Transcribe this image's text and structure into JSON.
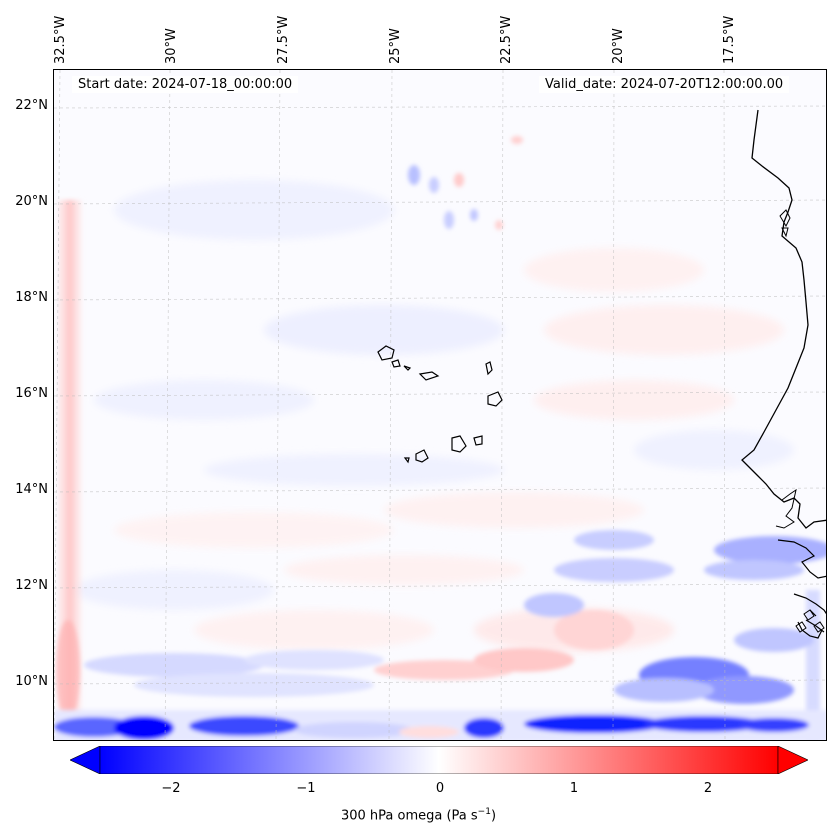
{
  "map": {
    "start_label": "Start date: 2024-07-18_00:00:00",
    "valid_label": "Valid_date: 2024-07-20T12:00:00.00",
    "lon_ticks": [
      "32.5°W",
      "30°W",
      "27.5°W",
      "25°W",
      "22.5°W",
      "20°W",
      "17.5°W"
    ],
    "lat_ticks": [
      "22°N",
      "20°N",
      "18°N",
      "16°N",
      "14°N",
      "12°N",
      "10°N"
    ],
    "colorbar": {
      "ticks": [
        "−2",
        "−1",
        "0",
        "1",
        "2"
      ],
      "tick_values": [
        -2,
        -1,
        0,
        1,
        2
      ],
      "range": [
        -2.5,
        2.5
      ],
      "label": "300 hPa omega (Pa s",
      "label_sup": "−1",
      "label_end": ")",
      "neg_color": "#0000ff",
      "pos_color": "#ff0000",
      "mid_color": "#ffffff"
    }
  }
}
